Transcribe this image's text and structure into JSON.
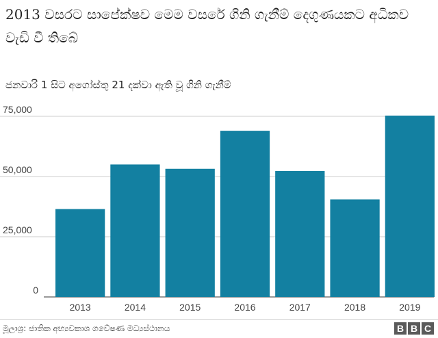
{
  "chart_data": {
    "type": "bar",
    "title": "2013 වසරට සාපේක්ෂව මෙම වසරේ ගිනි ගැනීම් දෙගුණයකට අධිකව වැඩි වී තිබේ",
    "subtitle": "ජනවාරි 1 සිට අගෝස්තු 21 දක්වා ඇති වූ ගිනි ගැනීම්",
    "categories": [
      "2013",
      "2014",
      "2015",
      "2016",
      "2017",
      "2018",
      "2019"
    ],
    "values": [
      36500,
      55000,
      53200,
      69000,
      52300,
      40500,
      75300
    ],
    "ylim": [
      0,
      75000
    ],
    "yticks": [
      0,
      25000,
      50000,
      75000
    ],
    "ytick_labels": [
      "0",
      "25,000",
      "50,000",
      "75,000"
    ],
    "xlabel": "",
    "ylabel": "",
    "bar_color": "#1380a1",
    "grid": true
  },
  "footer": {
    "source": "මූලාශ්‍ර: ජාතික අභ්‍යවකාශ ගවේෂණ මධ්‍යස්ථානය",
    "logo": [
      "B",
      "B",
      "C"
    ]
  }
}
